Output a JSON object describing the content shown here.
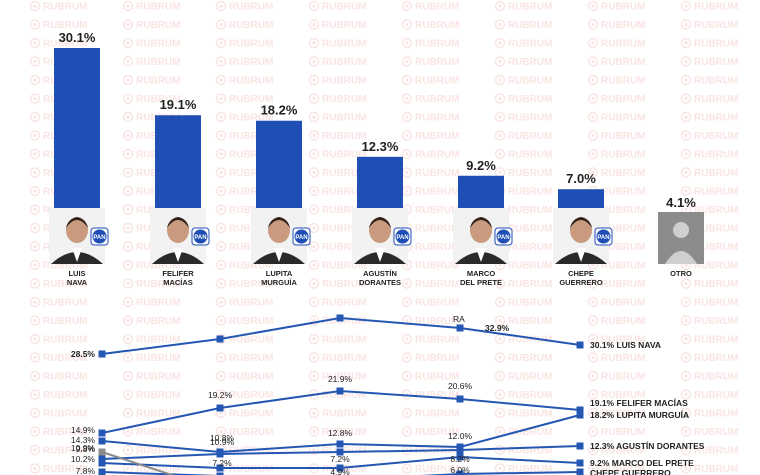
{
  "watermark": "RUBRUM",
  "colors": {
    "bar": "#1f4fb5",
    "line": "#2457b3",
    "gray_line": "#8a8a8a",
    "avatar_bg": "#8c8c8c",
    "party_badge": "#1f4fb5"
  },
  "chart_data": [
    {
      "type": "bar",
      "categories": [
        [
          "LUIS",
          "NAVA"
        ],
        [
          "FELIFER",
          "MACÍAS"
        ],
        [
          "LUPITA",
          "MURGUÍA"
        ],
        [
          "AGUSTÍN",
          "DORANTES"
        ],
        [
          "MARCO",
          "DEL PRETE"
        ],
        [
          "CHEPE",
          "GUERRERO"
        ],
        [
          "OTRO"
        ]
      ],
      "values": [
        30.1,
        19.1,
        18.2,
        12.3,
        9.2,
        7.0,
        4.1
      ],
      "value_labels": [
        "30.1%",
        "19.1%",
        "18.2%",
        "12.3%",
        "9.2%",
        "7.0%",
        "4.1%"
      ],
      "badge": [
        "PAN",
        "PAN",
        "PAN",
        "PAN",
        "PAN",
        "PAN",
        ""
      ],
      "ylim": [
        0,
        30.1
      ]
    },
    {
      "type": "line",
      "point_count": 6,
      "ylim": [
        0,
        40
      ],
      "series": [
        {
          "name": "LUIS NAVA",
          "values": [
            28.5,
            30.8,
            33.4,
            null,
            32.9,
            30.1
          ],
          "labels": [
            "28.5%",
            null,
            null,
            null,
            "32.9%",
            "30.1%"
          ],
          "color": "line"
        },
        {
          "name": "FELIFER MACÍAS",
          "values": [
            14.9,
            19.2,
            null,
            21.9,
            20.6,
            19.1
          ],
          "labels": [
            "14.9%",
            "19.2%",
            null,
            "21.9%",
            "20.6%",
            "19.1%"
          ],
          "color": "line",
          "x_index": [
            0,
            1,
            null,
            2,
            3,
            4
          ]
        },
        {
          "name": "LUPITA MURGUÍA",
          "values": [
            14.3,
            10.9,
            12.8,
            12.0,
            18.2
          ],
          "labels": [
            "14.3%",
            "10.9%",
            "12.8%",
            "12.0%",
            "18.2%"
          ],
          "color": "line"
        },
        {
          "name": "AGUSTÍN DORANTES",
          "values": [
            10.2,
            10.8,
            11.0,
            11.0,
            12.3
          ],
          "labels": [
            "10.2%",
            "10.8%",
            null,
            null,
            "12.3%"
          ],
          "color": "line"
        },
        {
          "name": "MARCO DEL PRETE",
          "values": [
            9.8,
            7.2,
            7.2,
            8.2,
            9.2
          ],
          "labels": [
            "9.8%",
            "7.2%",
            "7.2%",
            "8.2%",
            "9.2%"
          ],
          "color": "line"
        },
        {
          "name": "CHEPE GUERRERO",
          "values": [
            7.8,
            6.0,
            4.9,
            6.0,
            7.0
          ],
          "labels": [
            "7.8%",
            null,
            "4.9%",
            "6.0%",
            null
          ],
          "color": "line"
        },
        {
          "name": "",
          "values": [
            10.9,
            4.0
          ],
          "labels": [
            "10.9%",
            null
          ],
          "color": "gray_line"
        }
      ],
      "inline_label": "RA"
    }
  ]
}
